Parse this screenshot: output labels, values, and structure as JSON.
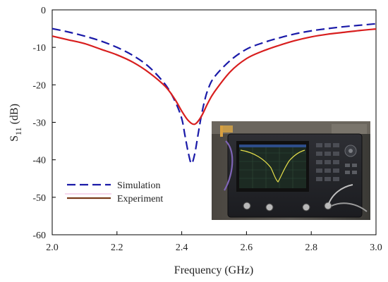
{
  "chart_data": {
    "type": "line",
    "title": "",
    "xlabel": "Frequency (GHz)",
    "ylabel_main": "S",
    "ylabel_sub": "11",
    "ylabel_unit": " (dB)",
    "xlim": [
      2.0,
      3.0
    ],
    "ylim": [
      -60,
      0
    ],
    "xticks": [
      "2.0",
      "2.2",
      "2.4",
      "2.6",
      "2.8",
      "3.0"
    ],
    "yticks": [
      "0",
      "-10",
      "-20",
      "-30",
      "-40",
      "-50",
      "-60"
    ],
    "grid": false,
    "legend_position": "bottom-left",
    "series": [
      {
        "name": "Simulation",
        "color": "#1a1aa8",
        "style": "dashed",
        "x": [
          2.0,
          2.05,
          2.1,
          2.15,
          2.2,
          2.25,
          2.3,
          2.35,
          2.38,
          2.4,
          2.41,
          2.42,
          2.43,
          2.44,
          2.45,
          2.46,
          2.47,
          2.48,
          2.5,
          2.55,
          2.6,
          2.65,
          2.7,
          2.75,
          2.8,
          2.85,
          2.9,
          2.95,
          3.0
        ],
        "values": [
          -5,
          -5.9,
          -7,
          -8.3,
          -10,
          -12.2,
          -15.3,
          -20,
          -24.5,
          -29,
          -33.5,
          -38,
          -41,
          -38.5,
          -33.5,
          -28.5,
          -24.5,
          -21.5,
          -18,
          -13.5,
          -10.5,
          -8.8,
          -7.5,
          -6.4,
          -5.6,
          -5,
          -4.5,
          -4.1,
          -3.7
        ]
      },
      {
        "name": "Experiment",
        "color": "#d81e1e",
        "style": "solid",
        "x": [
          2.0,
          2.05,
          2.1,
          2.15,
          2.2,
          2.25,
          2.3,
          2.35,
          2.38,
          2.4,
          2.42,
          2.44,
          2.46,
          2.48,
          2.5,
          2.55,
          2.6,
          2.65,
          2.7,
          2.75,
          2.8,
          2.85,
          2.9,
          2.95,
          3.0
        ],
        "values": [
          -7,
          -8,
          -9,
          -10.5,
          -12,
          -14,
          -16.8,
          -20.5,
          -24,
          -27,
          -29.5,
          -30.5,
          -28.5,
          -25,
          -22,
          -16.5,
          -13,
          -11,
          -9.5,
          -8.2,
          -7.2,
          -6.5,
          -6,
          -5.5,
          -5.1
        ]
      }
    ],
    "inset": {
      "description": "photo of vector network analyzer measurement setup",
      "position": "bottom-right"
    }
  }
}
